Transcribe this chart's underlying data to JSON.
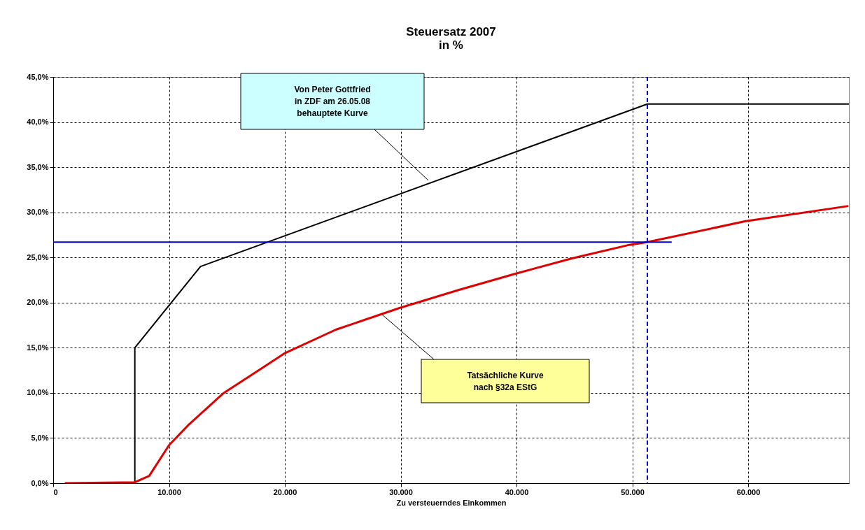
{
  "chart_data": {
    "type": "line",
    "title": [
      "Steuersatz 2007",
      "in %"
    ],
    "xlabel": "Zu versteuerndes Einkommen",
    "xlim": [
      0,
      68700
    ],
    "ylim": [
      0,
      45
    ],
    "xticks": [
      0,
      {
        "value": 10000,
        "label": "10.000"
      },
      {
        "value": 20000,
        "label": "20.000"
      },
      {
        "value": 30000,
        "label": "30.000"
      },
      {
        "value": 40000,
        "label": "40.000"
      },
      {
        "value": 50000,
        "label": "50.000"
      },
      {
        "value": 60000,
        "label": "60.000"
      }
    ],
    "yticks": [
      {
        "value": 0,
        "label": "0,0%"
      },
      {
        "value": 5,
        "label": "5,0%"
      },
      {
        "value": 10,
        "label": "10,0%"
      },
      {
        "value": 15,
        "label": "15,0%"
      },
      {
        "value": 20,
        "label": "20,0%"
      },
      {
        "value": 25,
        "label": "25,0%"
      },
      {
        "value": 30,
        "label": "30,0%"
      },
      {
        "value": 35,
        "label": "35,0%"
      },
      {
        "value": 40,
        "label": "40,0%"
      },
      {
        "value": 45,
        "label": "45,0%"
      }
    ],
    "grid": true,
    "marker": "none",
    "line_style": "solid",
    "series": [
      {
        "color": "#000000",
        "x": [
          7050,
          7050,
          12720,
          51300,
          68700
        ],
        "values": [
          0,
          15,
          24,
          42,
          42
        ]
      },
      {
        "color": "#e00000",
        "x": [
          1000,
          7050,
          8290,
          10000,
          11720,
          14730,
          17750,
          20000,
          24400,
          29900,
          35000,
          39900,
          44800,
          49760,
          51300,
          59720,
          68660
        ],
        "values": [
          0,
          0.1,
          0.8,
          4.2,
          6.5,
          10.0,
          12.5,
          14.4,
          17.0,
          19.4,
          21.4,
          23.2,
          24.9,
          26.4,
          26.7,
          29.0,
          30.7
        ]
      },
      {
        "color": "#0000cc",
        "x": [
          0,
          53400
        ],
        "values": [
          26.7,
          26.7
        ]
      }
    ],
    "ref_lines": [
      {
        "axis": "x",
        "value": 51300,
        "color": "#0000cc",
        "line_style": "dashed"
      }
    ],
    "annotations": [
      "Von Peter Gottfried\nin ZDF am 26.05.08\nbehauptete Kurve",
      "Tatsächliche Kurve\nnach §32a EStG"
    ]
  }
}
